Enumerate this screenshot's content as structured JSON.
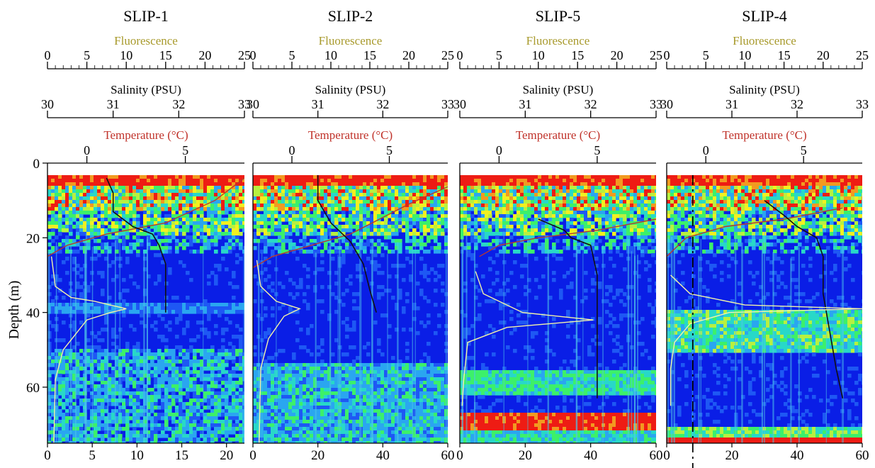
{
  "figure": {
    "y_axis_label": "Depth (m)",
    "y_ticks": [
      0,
      20,
      40,
      60
    ],
    "y_range": [
      0,
      75
    ],
    "fluorescence_label": "Fluorescence",
    "salinity_label": "Salinity (PSU)",
    "temperature_label": "Temperature (°C)",
    "colors": {
      "fluorescence_label": "#a89a2c",
      "temperature_label": "#c0322a",
      "echo_background": "#0a1ee6",
      "temperature_line": "#b8382e",
      "salinity_line": "#111111",
      "fluorescence_line": "#f4f4a8"
    }
  },
  "chart_data": [
    {
      "type": "heatmap",
      "title": "SLIP-1",
      "ylabel": "Depth (m)",
      "ylim": [
        0,
        75
      ],
      "xlim": [
        0,
        22
      ],
      "bottom_ticks": [
        0,
        5,
        10,
        15,
        20
      ],
      "fluorescence_ticks": [
        "0",
        "5",
        "10",
        "15",
        "20",
        "25"
      ],
      "salinity_ticks": [
        "30",
        "31",
        "32",
        "33"
      ],
      "temperature_ticks": [
        "0",
        "5"
      ],
      "fluorescence_range": [
        0,
        25
      ],
      "salinity_range": [
        30,
        33
      ],
      "temperature_range": [
        -2,
        8
      ],
      "temperature_profile": [
        [
          8,
          4
        ],
        [
          6.5,
          10
        ],
        [
          4,
          16
        ],
        [
          1,
          19
        ],
        [
          -1,
          22
        ],
        [
          -2,
          25
        ]
      ],
      "salinity_profile": [
        [
          30.9,
          4
        ],
        [
          31.0,
          8
        ],
        [
          31.0,
          13
        ],
        [
          31.3,
          17
        ],
        [
          31.6,
          19
        ],
        [
          31.7,
          22
        ],
        [
          31.8,
          27
        ],
        [
          31.8,
          33
        ],
        [
          31.8,
          40
        ]
      ],
      "fluorescence_profile": [
        [
          0.5,
          25
        ],
        [
          1,
          33
        ],
        [
          3,
          36
        ],
        [
          6,
          37
        ],
        [
          10,
          39
        ],
        [
          8,
          40
        ],
        [
          5,
          42
        ],
        [
          2,
          50
        ],
        [
          1,
          58
        ],
        [
          0.8,
          75
        ]
      ],
      "dashed_line_x": null
    },
    {
      "type": "heatmap",
      "title": "SLIP-2",
      "ylabel": "",
      "ylim": [
        0,
        75
      ],
      "xlim": [
        0,
        60
      ],
      "bottom_ticks": [
        0,
        20,
        40,
        60
      ],
      "fluorescence_ticks": [
        "0",
        "5",
        "10",
        "15",
        "20",
        "25"
      ],
      "salinity_ticks": [
        "30",
        "31",
        "32",
        "33"
      ],
      "temperature_ticks": [
        "0",
        "5"
      ],
      "fluorescence_range": [
        0,
        25
      ],
      "salinity_range": [
        30,
        33
      ],
      "temperature_range": [
        -2,
        8
      ],
      "temperature_profile": [
        [
          9,
          4
        ],
        [
          6,
          11
        ],
        [
          3,
          19
        ],
        [
          1,
          22
        ],
        [
          -1,
          25
        ],
        [
          -2,
          28
        ]
      ],
      "salinity_profile": [
        [
          31.0,
          3
        ],
        [
          31.0,
          10
        ],
        [
          31.2,
          16
        ],
        [
          31.5,
          21
        ],
        [
          31.7,
          27
        ],
        [
          31.8,
          34
        ],
        [
          31.9,
          40
        ]
      ],
      "fluorescence_profile": [
        [
          0.5,
          26
        ],
        [
          1,
          33
        ],
        [
          3,
          37
        ],
        [
          6,
          39
        ],
        [
          4,
          41
        ],
        [
          2,
          47
        ],
        [
          1,
          55
        ],
        [
          0.8,
          75
        ]
      ],
      "dashed_line_x": null
    },
    {
      "type": "heatmap",
      "title": "SLIP-5",
      "ylabel": "",
      "ylim": [
        0,
        75
      ],
      "xlim": [
        0,
        60
      ],
      "bottom_ticks": [
        0,
        20,
        40,
        60
      ],
      "fluorescence_ticks": [
        "0",
        "5",
        "10",
        "15",
        "20",
        "25"
      ],
      "salinity_ticks": [
        "30",
        "31",
        "32",
        "33"
      ],
      "temperature_ticks": [
        "0",
        "5"
      ],
      "fluorescence_range": [
        0,
        25
      ],
      "salinity_range": [
        30,
        33
      ],
      "temperature_range": [
        -2,
        8
      ],
      "temperature_profile": [
        [
          8,
          15
        ],
        [
          5,
          18
        ],
        [
          2,
          20
        ],
        [
          0,
          22
        ],
        [
          -1,
          25
        ]
      ],
      "salinity_profile": [
        [
          31.2,
          15
        ],
        [
          31.6,
          18
        ],
        [
          31.7,
          20
        ],
        [
          32.0,
          22
        ],
        [
          32.1,
          30
        ],
        [
          32.1,
          40
        ],
        [
          32.1,
          63
        ]
      ],
      "fluorescence_profile": [
        [
          2,
          29
        ],
        [
          3,
          35
        ],
        [
          8,
          40
        ],
        [
          17,
          42
        ],
        [
          6,
          44
        ],
        [
          1,
          48
        ],
        [
          0.5,
          58
        ],
        [
          0.3,
          65
        ]
      ],
      "dashed_line_x": null
    },
    {
      "type": "heatmap",
      "title": "SLIP-4",
      "ylabel": "",
      "ylim": [
        0,
        75
      ],
      "xlim": [
        0,
        60
      ],
      "bottom_ticks": [
        0,
        20,
        40,
        60
      ],
      "fluorescence_ticks": [
        "0",
        "5",
        "10",
        "15",
        "20",
        "25"
      ],
      "salinity_ticks": [
        "30",
        "31",
        "32",
        "33"
      ],
      "temperature_ticks": [
        "0",
        "5"
      ],
      "fluorescence_range": [
        0,
        25
      ],
      "salinity_range": [
        30,
        33
      ],
      "temperature_range": [
        -2,
        8
      ],
      "temperature_profile": [
        [
          7,
          12
        ],
        [
          4,
          15
        ],
        [
          1,
          17
        ],
        [
          -1,
          20
        ],
        [
          -2,
          25
        ]
      ],
      "salinity_profile": [
        [
          31.5,
          10
        ],
        [
          31.8,
          14
        ],
        [
          32.0,
          17
        ],
        [
          32.3,
          20
        ],
        [
          32.4,
          25
        ],
        [
          32.4,
          35
        ],
        [
          32.5,
          45
        ],
        [
          32.6,
          55
        ],
        [
          32.7,
          63
        ]
      ],
      "fluorescence_profile": [
        [
          0.5,
          30
        ],
        [
          3,
          35
        ],
        [
          10,
          38
        ],
        [
          25,
          39
        ],
        [
          8,
          40
        ],
        [
          3,
          43
        ],
        [
          1,
          48
        ],
        [
          0.5,
          55
        ],
        [
          0.5,
          65
        ]
      ],
      "dashed_line_x": 8
    }
  ]
}
